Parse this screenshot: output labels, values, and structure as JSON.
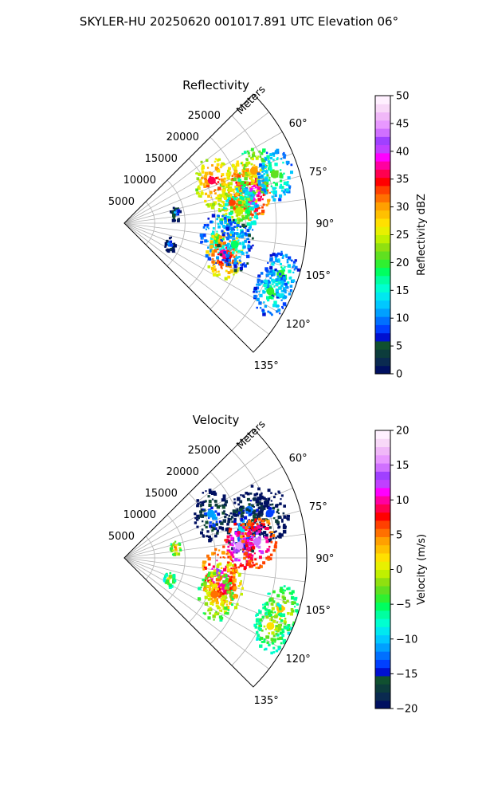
{
  "figure": {
    "title": "SKYLER-HU  20250620  001017.891 UTC Elevation 06°"
  },
  "chart_data": [
    {
      "type": "heatmap",
      "projection": "polar-sector",
      "title": "Reflectivity",
      "radial_label": "Meters",
      "radial_ticks": [
        5000,
        10000,
        15000,
        20000,
        25000
      ],
      "radial_tick_labels": [
        "5000",
        "10000",
        "15000",
        "20000",
        "25000"
      ],
      "radial_range": [
        0,
        30000
      ],
      "angle_range_deg": [
        45,
        135
      ],
      "angle_ticks_deg": [
        60,
        75,
        90,
        105,
        120,
        135
      ],
      "angle_tick_labels": [
        "60°",
        "75°",
        "90°",
        "105°",
        "120°",
        "135°"
      ],
      "grid": true,
      "colorbar": {
        "label": "Reflectivity dBZ",
        "range": [
          0,
          50
        ],
        "ticks": [
          0,
          5,
          10,
          15,
          20,
          25,
          30,
          35,
          40,
          45,
          50
        ],
        "tick_labels": [
          "0",
          "5",
          "10",
          "15",
          "20",
          "25",
          "30",
          "35",
          "40",
          "45",
          "50"
        ],
        "colors": [
          "#001060",
          "#0a2a50",
          "#0c3c3c",
          "#105030",
          "#0010d0",
          "#0040ff",
          "#0070ff",
          "#00a0ff",
          "#00c8ff",
          "#00e8f0",
          "#00ffd0",
          "#00ffa0",
          "#00ff60",
          "#30f030",
          "#60e020",
          "#90e010",
          "#c0f000",
          "#e8f000",
          "#ffe000",
          "#ffc000",
          "#ffa000",
          "#ff7000",
          "#ff4000",
          "#ff0000",
          "#ff0050",
          "#ff00a0",
          "#ff00ff",
          "#c040ff",
          "#a040ff",
          "#d070ff",
          "#e898ff",
          "#f0b8f8",
          "#f8d8f8",
          "#fff0ff"
        ]
      },
      "echoes": [
        {
          "range_m": 20000,
          "azimuth_deg": 72,
          "value": 38
        },
        {
          "range_m": 21500,
          "azimuth_deg": 77,
          "value": 42
        },
        {
          "range_m": 18000,
          "azimuth_deg": 79,
          "value": 33
        },
        {
          "range_m": 23000,
          "azimuth_deg": 68,
          "value": 30
        },
        {
          "range_m": 26000,
          "azimuth_deg": 72,
          "value": 22
        },
        {
          "range_m": 19000,
          "azimuth_deg": 84,
          "value": 24
        },
        {
          "range_m": 16000,
          "azimuth_deg": 64,
          "value": 36
        },
        {
          "range_m": 15500,
          "azimuth_deg": 99,
          "value": 20
        },
        {
          "range_m": 17000,
          "azimuth_deg": 107,
          "value": 38
        },
        {
          "range_m": 18500,
          "azimuth_deg": 101,
          "value": 18
        },
        {
          "range_m": 27000,
          "azimuth_deg": 108,
          "value": 20
        },
        {
          "range_m": 26500,
          "azimuth_deg": 115,
          "value": 20
        },
        {
          "range_m": 8500,
          "azimuth_deg": 78,
          "value": 12
        },
        {
          "range_m": 8000,
          "azimuth_deg": 115,
          "value": 11
        }
      ]
    },
    {
      "type": "heatmap",
      "projection": "polar-sector",
      "title": "Velocity",
      "radial_label": "Meters",
      "radial_ticks": [
        5000,
        10000,
        15000,
        20000,
        25000
      ],
      "radial_tick_labels": [
        "5000",
        "10000",
        "15000",
        "20000",
        "25000"
      ],
      "radial_range": [
        0,
        30000
      ],
      "angle_range_deg": [
        45,
        135
      ],
      "angle_ticks_deg": [
        60,
        75,
        90,
        105,
        120,
        135
      ],
      "angle_tick_labels": [
        "60°",
        "75°",
        "90°",
        "105°",
        "120°",
        "135°"
      ],
      "grid": true,
      "colorbar": {
        "label": "Velocity (m/s)",
        "range": [
          -20,
          20
        ],
        "ticks": [
          -20,
          -15,
          -10,
          -5,
          0,
          5,
          10,
          15,
          20
        ],
        "tick_labels": [
          "−20",
          "−15",
          "−10",
          "−5",
          "0",
          "5",
          "10",
          "15",
          "20"
        ],
        "colors": [
          "#001060",
          "#0a2a50",
          "#0c3c3c",
          "#105030",
          "#0010d0",
          "#0040ff",
          "#0070ff",
          "#00a0ff",
          "#00c8ff",
          "#00e8f0",
          "#00ffd0",
          "#00ffa0",
          "#00ff60",
          "#30f030",
          "#60e020",
          "#90e010",
          "#c0f000",
          "#e8f000",
          "#ffe000",
          "#ffc000",
          "#ffa000",
          "#ff7000",
          "#ff4000",
          "#ff0000",
          "#ff0050",
          "#ff00a0",
          "#ff00ff",
          "#c040ff",
          "#a040ff",
          "#d070ff",
          "#e898ff",
          "#f0b8f8",
          "#f8d8f8",
          "#fff0ff"
        ]
      },
      "echoes": [
        {
          "range_m": 22000,
          "azimuth_deg": 69,
          "value": -12
        },
        {
          "range_m": 25000,
          "azimuth_deg": 73,
          "value": -13
        },
        {
          "range_m": 20000,
          "azimuth_deg": 76,
          "value": -9
        },
        {
          "range_m": 19000,
          "azimuth_deg": 84,
          "value": 16
        },
        {
          "range_m": 22000,
          "azimuth_deg": 83,
          "value": 15
        },
        {
          "range_m": 16000,
          "azimuth_deg": 63,
          "value": -11
        },
        {
          "range_m": 15500,
          "azimuth_deg": 99,
          "value": 14
        },
        {
          "range_m": 17000,
          "azimuth_deg": 106,
          "value": 10
        },
        {
          "range_m": 16000,
          "azimuth_deg": 112,
          "value": 5
        },
        {
          "range_m": 27000,
          "azimuth_deg": 108,
          "value": 3
        },
        {
          "range_m": 26500,
          "azimuth_deg": 115,
          "value": 2
        },
        {
          "range_m": 8500,
          "azimuth_deg": 78,
          "value": 5
        },
        {
          "range_m": 8000,
          "azimuth_deg": 115,
          "value": 2
        }
      ]
    }
  ]
}
